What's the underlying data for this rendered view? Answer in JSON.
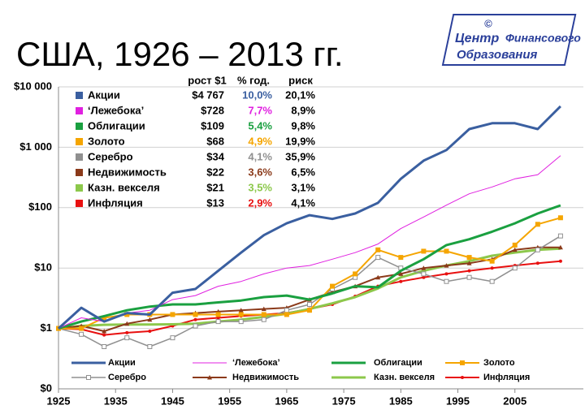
{
  "chart_data": {
    "type": "line",
    "title": "США, 1926 – 2013 гг.",
    "log_scale_y": true,
    "grid": true,
    "x": [
      1925,
      1929,
      1933,
      1937,
      1941,
      1945,
      1949,
      1953,
      1957,
      1961,
      1965,
      1969,
      1973,
      1977,
      1981,
      1985,
      1989,
      1993,
      1997,
      2001,
      2005,
      2009,
      2013
    ],
    "xlim": [
      1925,
      2017
    ],
    "xticks": [
      1925,
      1935,
      1945,
      1955,
      1965,
      1975,
      1985,
      1995,
      2005
    ],
    "ylim": [
      0.1,
      10000
    ],
    "yticks": [
      {
        "value": 0.1,
        "label": "$0"
      },
      {
        "value": 1,
        "label": "$1"
      },
      {
        "value": 10,
        "label": "$10"
      },
      {
        "value": 100,
        "label": "$100"
      },
      {
        "value": 1000,
        "label": "$1 000"
      },
      {
        "value": 10000,
        "label": "$10 000"
      }
    ],
    "series": [
      {
        "name": "Акции",
        "color": "#3a5fa0",
        "line_width": 3,
        "marker": null,
        "values": [
          1,
          2.2,
          1.3,
          1.8,
          1.7,
          3.9,
          4.5,
          9,
          18,
          35,
          55,
          75,
          65,
          80,
          120,
          300,
          600,
          900,
          2000,
          2500,
          2500,
          2000,
          4767
        ]
      },
      {
        "name": "‘Лежебока’",
        "color": "#e020e0",
        "line_width": 1,
        "marker": null,
        "values": [
          1,
          1.5,
          1.3,
          1.8,
          2,
          3,
          3.5,
          5,
          6,
          8,
          10,
          11,
          14,
          18,
          25,
          45,
          70,
          110,
          170,
          220,
          300,
          350,
          728
        ]
      },
      {
        "name": "Облигации",
        "color": "#1aa040",
        "line_width": 3,
        "marker": null,
        "values": [
          1,
          1.3,
          1.6,
          2,
          2.3,
          2.5,
          2.5,
          2.7,
          2.9,
          3.3,
          3.5,
          3,
          3.8,
          5,
          4.8,
          9,
          14,
          24,
          30,
          40,
          55,
          80,
          109
        ]
      },
      {
        "name": "Золото",
        "color": "#f5a500",
        "line_width": 2,
        "marker": "square",
        "values": [
          1,
          1,
          1.5,
          1.7,
          1.7,
          1.7,
          1.7,
          1.7,
          1.7,
          1.7,
          1.7,
          2,
          5,
          8,
          20,
          15,
          19,
          19,
          15,
          13,
          24,
          53,
          68
        ]
      },
      {
        "name": "Серебро",
        "color": "#909090",
        "line_width": 1.5,
        "marker": "square",
        "values": [
          1,
          0.8,
          0.5,
          0.7,
          0.5,
          0.7,
          1.1,
          1.3,
          1.3,
          1.4,
          2,
          2.5,
          4.5,
          7,
          15,
          10,
          8,
          6,
          7,
          6,
          10,
          20,
          34
        ]
      },
      {
        "name": "Недвижимость",
        "color": "#8b3a1a",
        "line_width": 2,
        "marker": "triangle",
        "values": [
          1,
          1.1,
          0.9,
          1.2,
          1.4,
          1.7,
          1.8,
          1.9,
          2,
          2.1,
          2.2,
          3,
          4,
          5,
          7,
          8,
          10,
          11,
          12,
          14,
          20,
          22,
          22
        ]
      },
      {
        "name": "Казн. векселя",
        "color": "#8cc84b",
        "line_width": 3,
        "marker": null,
        "values": [
          1,
          1.1,
          1.15,
          1.16,
          1.16,
          1.17,
          1.2,
          1.3,
          1.4,
          1.55,
          1.75,
          2.1,
          2.6,
          3.3,
          4.6,
          7,
          9,
          11,
          13,
          16,
          18,
          20,
          21
        ]
      },
      {
        "name": "Инфляция",
        "color": "#e81010",
        "line_width": 2,
        "marker": "circle",
        "values": [
          1,
          0.97,
          0.78,
          0.85,
          0.9,
          1.1,
          1.4,
          1.5,
          1.6,
          1.7,
          1.8,
          2.1,
          2.5,
          3.4,
          5,
          6,
          7,
          8,
          9,
          10,
          11,
          12,
          13
        ]
      }
    ],
    "summary": {
      "headers": [
        "рост $1",
        "% год.",
        "риск"
      ],
      "rows": [
        [
          "$4 767",
          "10,0%",
          "20,1%"
        ],
        [
          "$728",
          "7,7%",
          "8,9%"
        ],
        [
          "$109",
          "5,4%",
          "9,8%"
        ],
        [
          "$68",
          "4,9%",
          "19,9%"
        ],
        [
          "$34",
          "4,1%",
          "35,9%"
        ],
        [
          "$22",
          "3,6%",
          "6,5%"
        ],
        [
          "$21",
          "3,5%",
          "3,1%"
        ],
        [
          "$13",
          "2,9%",
          "4,1%"
        ]
      ]
    }
  },
  "logo": {
    "lines": [
      "Центр",
      "Финансового",
      "Образования"
    ]
  }
}
